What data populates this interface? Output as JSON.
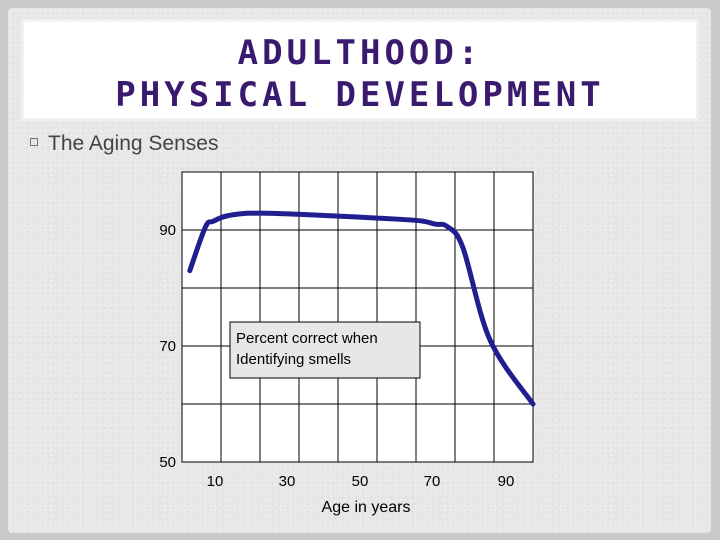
{
  "slide": {
    "title_line1": "ADULTHOOD:",
    "title_line2": "PHYSICAL DEVELOPMENT",
    "bullet": "The Aging Senses"
  },
  "colors": {
    "title": "#3a1a6e",
    "line": "#1f1f8f"
  },
  "chart_data": {
    "type": "line",
    "xlabel": "Age in years",
    "ylabel": "",
    "xlim": [
      0,
      90
    ],
    "ylim": [
      50,
      100
    ],
    "x_tick_labels": [
      "10",
      "30",
      "50",
      "70",
      "90"
    ],
    "y_tick_labels": [
      "90",
      "70",
      "50"
    ],
    "annotation": [
      "Percent correct when",
      "Identifying smells"
    ],
    "grid": true,
    "series": [
      {
        "name": "",
        "x": [
          2,
          6,
          8,
          12,
          20,
          40,
          57,
          62,
          65,
          68,
          72,
          79,
          90
        ],
        "y": [
          83,
          90.5,
          91.5,
          92.5,
          92.9,
          92.4,
          91.8,
          91.5,
          91.0,
          90.6,
          87,
          71,
          60
        ]
      }
    ]
  }
}
